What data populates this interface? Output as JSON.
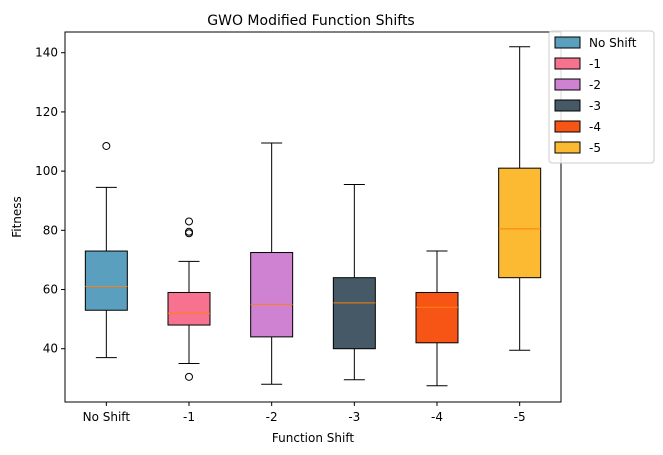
{
  "chart_data": {
    "type": "box",
    "title": "GWO Modified Function Shifts",
    "xlabel": "Function Shift",
    "ylabel": "Fitness",
    "categories": [
      "No Shift",
      "-1",
      "-2",
      "-3",
      "-4",
      "-5"
    ],
    "ylim": [
      22,
      147
    ],
    "yticks": [
      40,
      60,
      80,
      100,
      120,
      140
    ],
    "grid": false,
    "legend_position": "upper-right-outside",
    "median_color": "#ff7f0e",
    "series": [
      {
        "name": "No Shift",
        "color": "#5a9fbe",
        "whisker_low": 37,
        "q1": 53,
        "median": 61,
        "q3": 73,
        "whisker_high": 94.5,
        "outliers": [
          108.5
        ]
      },
      {
        "name": "-1",
        "color": "#f7728f",
        "whisker_low": 35,
        "q1": 48,
        "median": 52,
        "q3": 59,
        "whisker_high": 69.5,
        "outliers": [
          30.5,
          79,
          79.5,
          83
        ]
      },
      {
        "name": "-2",
        "color": "#cf82d1",
        "whisker_low": 28,
        "q1": 44,
        "median": 55,
        "q3": 72.5,
        "whisker_high": 109.5,
        "outliers": []
      },
      {
        "name": "-3",
        "color": "#455a66",
        "whisker_low": 29.5,
        "q1": 40,
        "median": 55.5,
        "q3": 64,
        "whisker_high": 95.5,
        "outliers": []
      },
      {
        "name": "-4",
        "color": "#f65516",
        "whisker_low": 27.5,
        "q1": 42,
        "median": 54,
        "q3": 59,
        "whisker_high": 73,
        "outliers": []
      },
      {
        "name": "-5",
        "color": "#fcb932",
        "whisker_low": 39.5,
        "q1": 64,
        "median": 80.5,
        "q3": 101,
        "whisker_high": 142,
        "outliers": []
      }
    ]
  }
}
